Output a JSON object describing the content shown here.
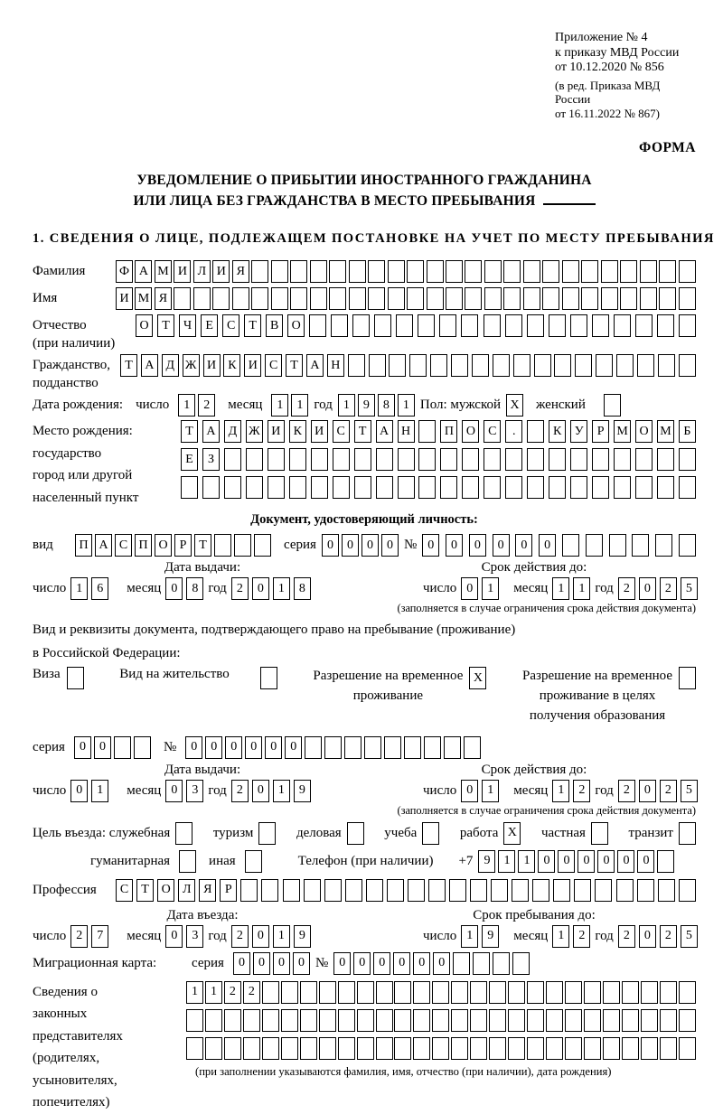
{
  "header": {
    "annex": [
      "Приложение № 4",
      "к приказу МВД России",
      "от 10.12.2020 № 856"
    ],
    "annex_note": [
      "(в ред. Приказа МВД России",
      "от 16.11.2022 № 867)"
    ],
    "form_label": "ФОРМА"
  },
  "title": {
    "line1": "УВЕДОМЛЕНИЕ О ПРИБЫТИИ ИНОСТРАННОГО ГРАЖДАНИНА",
    "line2": "ИЛИ ЛИЦА БЕЗ ГРАЖДАНСТВА В МЕСТО ПРЕБЫВАНИЯ"
  },
  "section1_heading": "1. СВЕДЕНИЯ О ЛИЦЕ, ПОДЛЕЖАЩЕМ ПОСТАНОВКЕ НА УЧЕТ ПО МЕСТУ ПРЕБЫВАНИЯ",
  "labels": {
    "surname": "Фамилия",
    "name": "Имя",
    "patronymic": "Отчество",
    "patronymic_note": "(при наличии)",
    "citizenship1": "Гражданство,",
    "citizenship2": "подданство",
    "birth_date": "Дата рождения:",
    "day": "число",
    "month": "месяц",
    "year": "год",
    "sex_male": "Пол: мужской",
    "sex_female": "женский",
    "birthplace": [
      "Место рождения:",
      "государство",
      "город или другой",
      "населенный пункт"
    ],
    "id_doc_heading": "Документ, удостоверяющий личность:",
    "kind": "вид",
    "series": "серия",
    "number": "№",
    "issue_date": "Дата выдачи:",
    "valid_until": "Срок действия до:",
    "valid_note": "(заполняется в случае ограничения срока действия документа)",
    "stay_doc_line1": "Вид и реквизиты документа, подтверждающего право на пребывание (проживание)",
    "stay_doc_line2": "в Российской Федерации:",
    "visa": "Виза",
    "residence_permit": "Вид на жительство",
    "temp_residence": [
      "Разрешение на временное",
      "проживание"
    ],
    "temp_residence_edu": [
      "Разрешение на временное",
      "проживание в целях",
      "получения образования"
    ],
    "purpose_official": "Цель въезда: служебная",
    "purpose_tourism": "туризм",
    "purpose_business": "деловая",
    "purpose_study": "учеба",
    "purpose_work": "работа",
    "purpose_private": "частная",
    "purpose_transit": "транзит",
    "purpose_humanitarian": "гуманитарная",
    "purpose_other": "иная",
    "phone": "Телефон (при наличии)",
    "phone_prefix": "+7",
    "profession": "Профессия",
    "entry_date": "Дата въезда:",
    "stay_until": "Срок пребывания до:",
    "migration_card": "Миграционная карта:",
    "representatives": [
      "Сведения о",
      "законных",
      "представителях",
      "(родителях,",
      "усыновителях,",
      "попечителях)"
    ],
    "representatives_note": "(при заполнении указываются фамилия, имя, отчество (при наличии), дата рождения)"
  },
  "fields": {
    "surname": {
      "text": "ФАМИЛИЯ",
      "count": 30
    },
    "name": {
      "text": "ИМЯ",
      "count": 30
    },
    "patronymic": {
      "text": "ОТЧЕСТВО",
      "count": 26
    },
    "citizenship": {
      "text": "ТАДЖИКИСТАН",
      "count": 28
    },
    "birth_day": {
      "text": "12",
      "count": 2
    },
    "birth_month": {
      "text": "11",
      "count": 2
    },
    "birth_year": {
      "text": "1981",
      "count": 4
    },
    "birthplace_row1": {
      "text": "ТАДЖИКИСТАН ПОС. КУРМОМБ",
      "count": 24
    },
    "birthplace_row2": {
      "text": "ЕЗ",
      "count": 24
    },
    "birthplace_row3": {
      "text": "",
      "count": 24
    },
    "id_doc_type": {
      "text": "ПАСПОРТ",
      "count": 10
    },
    "id_doc_series": {
      "text": "0000",
      "count": 4
    },
    "id_doc_number": {
      "text": "000000",
      "count": 12
    },
    "id_issue_day": {
      "text": "16",
      "count": 2
    },
    "id_issue_month": {
      "text": "08",
      "count": 2
    },
    "id_issue_year": {
      "text": "2018",
      "count": 4
    },
    "id_expiry_day": {
      "text": "01",
      "count": 2
    },
    "id_expiry_month": {
      "text": "11",
      "count": 2
    },
    "id_expiry_year": {
      "text": "2025",
      "count": 4
    },
    "stay_doc_series": {
      "text": "00",
      "count": 4
    },
    "stay_doc_number": {
      "text": "000000",
      "count": 15
    },
    "stay_issue_day": {
      "text": "01",
      "count": 2
    },
    "stay_issue_month": {
      "text": "03",
      "count": 2
    },
    "stay_issue_year": {
      "text": "2019",
      "count": 4
    },
    "stay_expiry_day": {
      "text": "01",
      "count": 2
    },
    "stay_expiry_month": {
      "text": "12",
      "count": 2
    },
    "stay_expiry_year": {
      "text": "2025",
      "count": 4
    },
    "phone": {
      "text": "911000000",
      "count": 10
    },
    "profession": {
      "text": "СТОЛЯР",
      "count": 28
    },
    "entry_day": {
      "text": "27",
      "count": 2
    },
    "entry_month": {
      "text": "03",
      "count": 2
    },
    "entry_year": {
      "text": "2019",
      "count": 4
    },
    "stay_until_day": {
      "text": "19",
      "count": 2
    },
    "stay_until_month": {
      "text": "12",
      "count": 2
    },
    "stay_until_year": {
      "text": "2025",
      "count": 4
    },
    "migration_card_series": {
      "text": "0000",
      "count": 4
    },
    "migration_card_number": {
      "text": "000000",
      "count": 10
    },
    "representatives_row1": {
      "text": "1122",
      "count": 27
    },
    "representatives_row2": {
      "text": "",
      "count": 27
    },
    "representatives_row3": {
      "text": "",
      "count": 27
    }
  },
  "checks": {
    "sex_male": "X",
    "sex_female": "",
    "visa": "",
    "residence_permit": "",
    "temp_residence": "X",
    "temp_residence_edu": "",
    "purpose_official": "",
    "purpose_tourism": "",
    "purpose_business": "",
    "purpose_study": "",
    "purpose_work": "X",
    "purpose_private": "",
    "purpose_transit": "",
    "purpose_humanitarian": "",
    "purpose_other": ""
  },
  "colors": {
    "ink": "#000000",
    "paper": "#ffffff"
  }
}
